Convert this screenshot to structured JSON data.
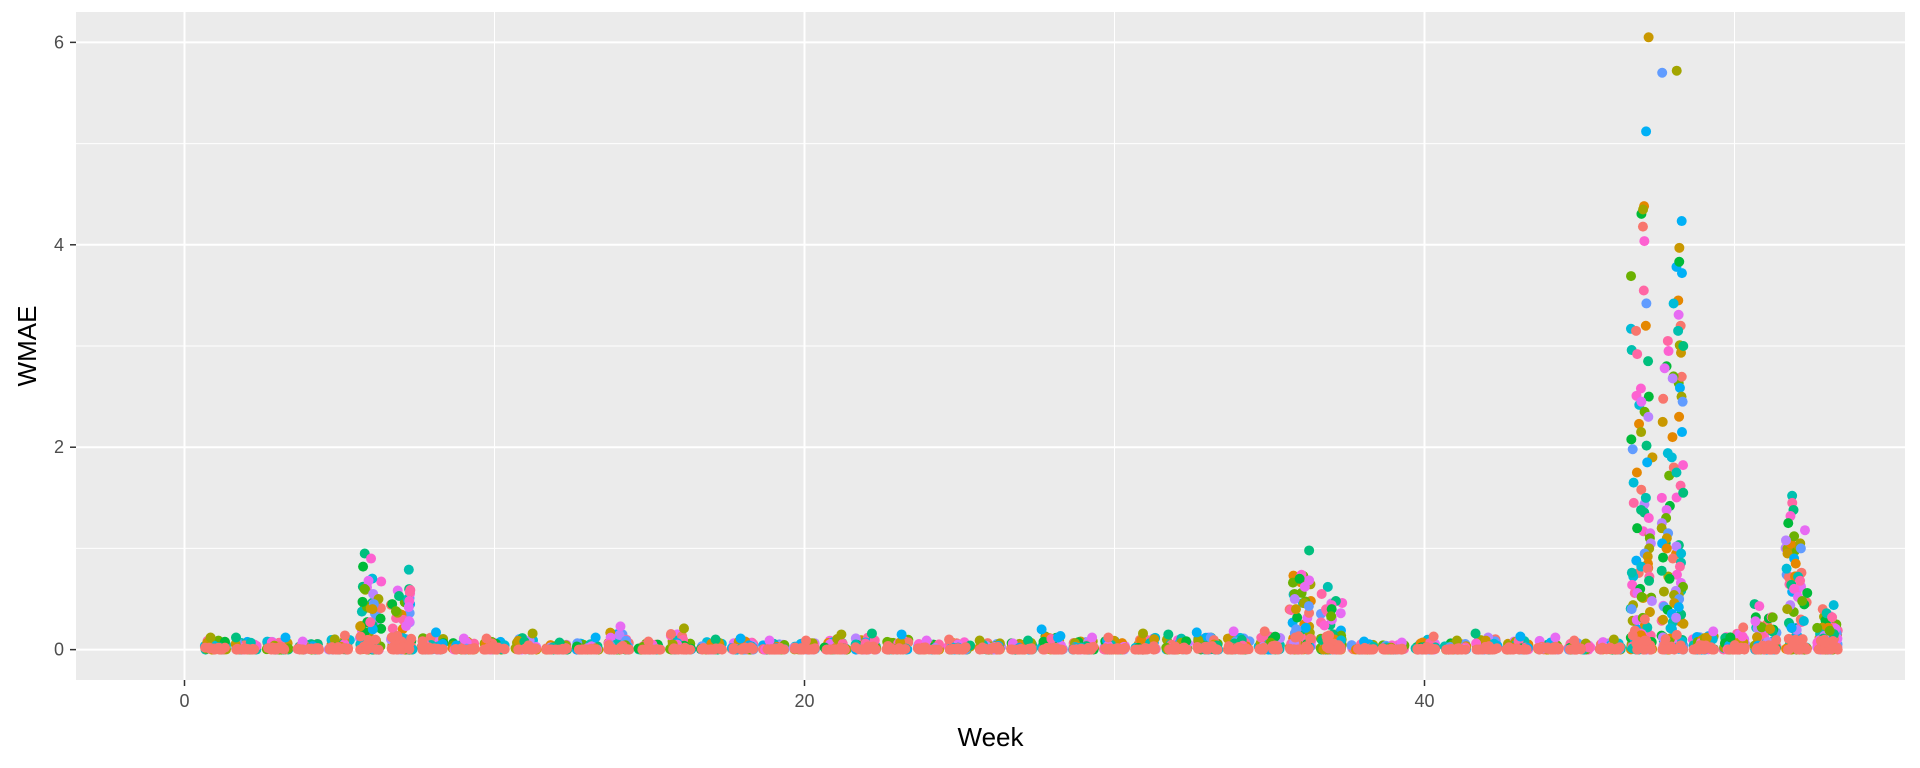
{
  "chart_data": {
    "type": "scatter",
    "title": "",
    "xlabel": "Week",
    "ylabel": "WMAE",
    "xlim": [
      -3.5,
      55.5
    ],
    "ylim": [
      -0.3,
      6.3
    ],
    "x_ticks": [
      0,
      20,
      40
    ],
    "x_tick_labels": [
      "0",
      "20",
      "40"
    ],
    "y_ticks": [
      0,
      2,
      4,
      6
    ],
    "y_tick_labels": [
      "0",
      "2",
      "4",
      "6"
    ],
    "grid": true,
    "legend": "none",
    "panel_background": "#EBEBEB",
    "grid_color": "#FFFFFF",
    "point_colors": [
      "#F8766D",
      "#E58700",
      "#C99800",
      "#A3A500",
      "#6BB100",
      "#00BA38",
      "#00BF7D",
      "#00C0AF",
      "#00BCD8",
      "#00B0F6",
      "#619CFF",
      "#B983FF",
      "#E76BF3",
      "#FD61D1",
      "#FF67A4"
    ],
    "weeks": [
      {
        "week": 1,
        "max": 0.12
      },
      {
        "week": 2,
        "max": 0.12
      },
      {
        "week": 3,
        "max": 0.12
      },
      {
        "week": 4,
        "max": 0.08
      },
      {
        "week": 5,
        "max": 0.14
      },
      {
        "week": 6,
        "max": 0.95,
        "tail": [
          0.95,
          0.9,
          0.82,
          0.68,
          0.6,
          0.55,
          0.5,
          0.45,
          0.4
        ]
      },
      {
        "week": 7,
        "max": 0.8,
        "tail": [
          0.79,
          0.57,
          0.53,
          0.48,
          0.45,
          0.42,
          0.38
        ]
      },
      {
        "week": 8,
        "max": 0.17
      },
      {
        "week": 9,
        "max": 0.11
      },
      {
        "week": 10,
        "max": 0.11
      },
      {
        "week": 11,
        "max": 0.16
      },
      {
        "week": 12,
        "max": 0.07
      },
      {
        "week": 13,
        "max": 0.12
      },
      {
        "week": 14,
        "max": 0.23
      },
      {
        "week": 15,
        "max": 0.08
      },
      {
        "week": 16,
        "max": 0.21
      },
      {
        "week": 17,
        "max": 0.1
      },
      {
        "week": 18,
        "max": 0.11
      },
      {
        "week": 19,
        "max": 0.09
      },
      {
        "week": 20,
        "max": 0.09
      },
      {
        "week": 21,
        "max": 0.15
      },
      {
        "week": 22,
        "max": 0.16
      },
      {
        "week": 23,
        "max": 0.15
      },
      {
        "week": 24,
        "max": 0.09
      },
      {
        "week": 25,
        "max": 0.1
      },
      {
        "week": 26,
        "max": 0.09
      },
      {
        "week": 27,
        "max": 0.09
      },
      {
        "week": 28,
        "max": 0.2
      },
      {
        "week": 29,
        "max": 0.12
      },
      {
        "week": 30,
        "max": 0.12
      },
      {
        "week": 31,
        "max": 0.16
      },
      {
        "week": 32,
        "max": 0.15
      },
      {
        "week": 33,
        "max": 0.17
      },
      {
        "week": 34,
        "max": 0.18
      },
      {
        "week": 35,
        "max": 0.18
      },
      {
        "week": 36,
        "max": 0.98,
        "tail": [
          0.98,
          0.74,
          0.7,
          0.62,
          0.55,
          0.5,
          0.46,
          0.43,
          0.4
        ]
      },
      {
        "week": 37,
        "max": 0.62,
        "tail": [
          0.62,
          0.55,
          0.48,
          0.44,
          0.4,
          0.36,
          0.33
        ]
      },
      {
        "week": 38,
        "max": 0.08
      },
      {
        "week": 39,
        "max": 0.07
      },
      {
        "week": 40,
        "max": 0.13
      },
      {
        "week": 41,
        "max": 0.09
      },
      {
        "week": 42,
        "max": 0.16
      },
      {
        "week": 43,
        "max": 0.13
      },
      {
        "week": 44,
        "max": 0.12
      },
      {
        "week": 45,
        "max": 0.09
      },
      {
        "week": 46,
        "max": 0.1
      },
      {
        "week": 47,
        "max": 6.05,
        "tail": [
          6.05,
          5.12,
          3.2,
          3.17,
          3.15,
          2.96,
          2.92,
          2.85,
          2.58,
          2.5,
          2.45,
          2.35,
          2.3,
          2.15,
          1.98,
          1.9,
          1.85,
          1.75,
          1.65,
          1.58,
          1.5,
          1.45,
          1.38,
          1.3,
          1.2,
          1.15,
          1.1,
          1.05,
          1.0,
          0.95,
          0.92,
          0.88,
          0.85,
          0.82,
          0.8,
          0.76,
          0.72,
          0.68,
          0.64,
          0.6,
          0.56,
          0.52,
          0.48,
          0.44,
          0.4
        ]
      },
      {
        "week": 48,
        "max": 5.72,
        "tail": [
          5.72,
          5.7,
          3.97,
          3.72,
          3.45,
          3.42,
          3.2,
          3.15,
          3.05,
          3.0,
          2.95,
          2.8,
          2.78,
          2.7,
          2.68,
          2.5,
          2.45,
          2.25,
          2.15,
          2.1,
          1.9,
          1.8,
          1.75,
          1.62,
          1.55,
          1.5,
          1.42,
          1.38,
          1.3,
          1.25,
          1.2,
          1.15,
          1.1,
          1.05,
          1.0,
          0.95,
          0.9,
          0.86,
          0.82,
          0.78,
          0.74,
          0.7,
          0.66,
          0.62,
          0.58,
          0.54,
          0.5,
          0.46,
          0.42
        ]
      },
      {
        "week": 49,
        "max": 0.18
      },
      {
        "week": 50,
        "max": 0.22
      },
      {
        "week": 51,
        "max": 0.45,
        "tail": [
          0.45,
          0.43,
          0.32,
          0.28
        ]
      },
      {
        "week": 52,
        "max": 1.52,
        "tail": [
          1.52,
          1.45,
          1.38,
          1.32,
          1.25,
          1.18,
          1.12,
          1.08,
          1.05,
          1.0,
          0.95,
          0.9,
          0.85,
          0.8,
          0.76,
          0.72,
          0.68,
          0.64,
          0.6,
          0.56,
          0.52,
          0.48,
          0.44,
          0.4
        ]
      },
      {
        "week": 53,
        "max": 0.44,
        "tail": [
          0.44,
          0.4,
          0.36,
          0.32
        ]
      }
    ]
  }
}
